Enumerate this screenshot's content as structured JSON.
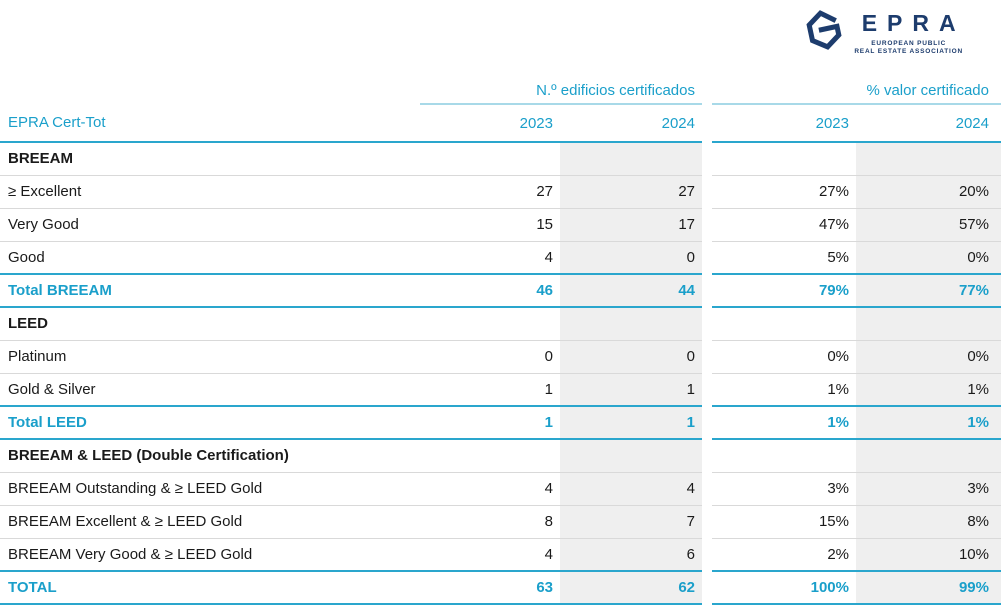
{
  "logo": {
    "brand": "EPRA",
    "subtitle": [
      "EUROPEAN PUBLIC",
      "REAL ESTATE ASSOCIATION"
    ]
  },
  "colors": {
    "cyan_text": "#1a9fca",
    "cyan_line": "#2aa6cd",
    "light_cyan_line": "#a8d9e8",
    "shade_gray": "#efefef",
    "separator_gray": "#d9d9d9",
    "navy": "#1d3c6d",
    "text_black": "#1a1a1a"
  },
  "table": {
    "row_header": "EPRA Cert-Tot",
    "groups": [
      {
        "label": "N.º edificios certificados",
        "years": [
          "2023",
          "2024"
        ]
      },
      {
        "label": "% valor certificado",
        "years": [
          "2023",
          "2024"
        ]
      }
    ],
    "rows": [
      {
        "type": "section",
        "label": "BREEAM",
        "values": [
          "",
          "",
          "",
          ""
        ]
      },
      {
        "type": "data",
        "label": "≥ Excellent",
        "values": [
          "27",
          "27",
          "27%",
          "20%"
        ]
      },
      {
        "type": "data",
        "label": "Very Good",
        "values": [
          "15",
          "17",
          "47%",
          "57%"
        ]
      },
      {
        "type": "data",
        "label": "Good",
        "values": [
          "4",
          "0",
          "5%",
          "0%"
        ]
      },
      {
        "type": "total",
        "label": "Total BREEAM",
        "values": [
          "46",
          "44",
          "79%",
          "77%"
        ]
      },
      {
        "type": "section",
        "label": "LEED",
        "values": [
          "",
          "",
          "",
          ""
        ]
      },
      {
        "type": "data",
        "label": "Platinum",
        "values": [
          "0",
          "0",
          "0%",
          "0%"
        ]
      },
      {
        "type": "data",
        "label": "Gold & Silver",
        "values": [
          "1",
          "1",
          "1%",
          "1%"
        ]
      },
      {
        "type": "total",
        "label": "Total LEED",
        "values": [
          "1",
          "1",
          "1%",
          "1%"
        ]
      },
      {
        "type": "section",
        "label": "BREEAM & LEED (Double Certification)",
        "values": [
          "",
          "",
          "",
          ""
        ]
      },
      {
        "type": "data",
        "label": "BREEAM Outstanding & ≥ LEED Gold",
        "values": [
          "4",
          "4",
          "3%",
          "3%"
        ]
      },
      {
        "type": "data",
        "label": "BREEAM Excellent & ≥ LEED Gold",
        "values": [
          "8",
          "7",
          "15%",
          "8%"
        ]
      },
      {
        "type": "data",
        "label": "BREEAM Very Good & ≥ LEED Gold",
        "values": [
          "4",
          "6",
          "2%",
          "10%"
        ]
      },
      {
        "type": "grand_total",
        "label": "TOTAL",
        "values": [
          "63",
          "62",
          "100%",
          "99%"
        ]
      }
    ]
  }
}
